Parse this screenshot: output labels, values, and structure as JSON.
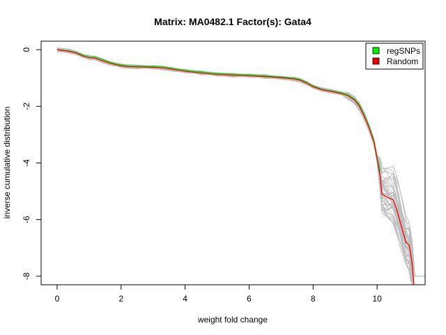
{
  "chart_data": {
    "type": "line",
    "title": "Matrix: MA0482.1 Factor(s): Gata4",
    "xlabel": "weight fold change",
    "ylabel": "inverse cumulative distribution",
    "xlim": [
      -0.5,
      11.5
    ],
    "ylim": [
      -8.3,
      0.3
    ],
    "x_ticks": [
      0,
      2,
      4,
      6,
      8,
      10
    ],
    "y_ticks": [
      0,
      -2,
      -4,
      -6,
      -8
    ],
    "grid": false,
    "legend_position": "top-right",
    "colors": {
      "regSNPs": "#00ee00",
      "Random": "#ee0000",
      "background": "#bebebe"
    },
    "series": [
      {
        "name": "regSNPs",
        "x": [
          0,
          0.2,
          0.4,
          0.6,
          0.8,
          1.0,
          1.2,
          1.4,
          1.6,
          1.8,
          2.0,
          2.2,
          2.5,
          3.0,
          3.3,
          3.6,
          4.0,
          4.5,
          5.0,
          5.5,
          6.0,
          6.5,
          7.0,
          7.4,
          7.6,
          7.8,
          8.0,
          8.3,
          8.6,
          8.9,
          9.1,
          9.3,
          9.45,
          9.6,
          9.75,
          9.9,
          10.0,
          10.1
        ],
        "y": [
          0,
          -0.02,
          -0.05,
          -0.1,
          -0.18,
          -0.22,
          -0.25,
          -0.33,
          -0.42,
          -0.48,
          -0.53,
          -0.56,
          -0.57,
          -0.58,
          -0.6,
          -0.65,
          -0.72,
          -0.78,
          -0.83,
          -0.86,
          -0.88,
          -0.92,
          -0.96,
          -1.0,
          -1.05,
          -1.15,
          -1.28,
          -1.4,
          -1.46,
          -1.52,
          -1.6,
          -1.75,
          -1.95,
          -2.3,
          -2.7,
          -3.2,
          -3.8,
          -4.3
        ]
      },
      {
        "name": "Random",
        "x": [
          0,
          0.2,
          0.4,
          0.6,
          0.8,
          1.0,
          1.2,
          1.4,
          1.6,
          1.8,
          2.0,
          2.2,
          2.5,
          3.0,
          3.3,
          3.6,
          4.0,
          4.5,
          5.0,
          5.5,
          6.0,
          6.5,
          7.0,
          7.4,
          7.6,
          7.8,
          8.0,
          8.3,
          8.6,
          8.9,
          9.1,
          9.3,
          9.45,
          9.6,
          9.75,
          9.9,
          10.0,
          10.1,
          10.15,
          10.3,
          10.5,
          10.6,
          10.7,
          10.8,
          10.9,
          11.0,
          11.05,
          11.1,
          11.15
        ],
        "y": [
          0,
          -0.03,
          -0.06,
          -0.12,
          -0.22,
          -0.28,
          -0.3,
          -0.38,
          -0.46,
          -0.52,
          -0.57,
          -0.6,
          -0.61,
          -0.62,
          -0.64,
          -0.69,
          -0.76,
          -0.82,
          -0.87,
          -0.9,
          -0.92,
          -0.95,
          -0.99,
          -1.03,
          -1.08,
          -1.18,
          -1.31,
          -1.42,
          -1.48,
          -1.55,
          -1.63,
          -1.78,
          -2.0,
          -2.35,
          -2.75,
          -3.25,
          -3.85,
          -4.5,
          -5.1,
          -5.2,
          -5.3,
          -5.6,
          -6.0,
          -6.4,
          -6.8,
          -6.9,
          -7.2,
          -7.6,
          -8.3
        ]
      }
    ]
  }
}
